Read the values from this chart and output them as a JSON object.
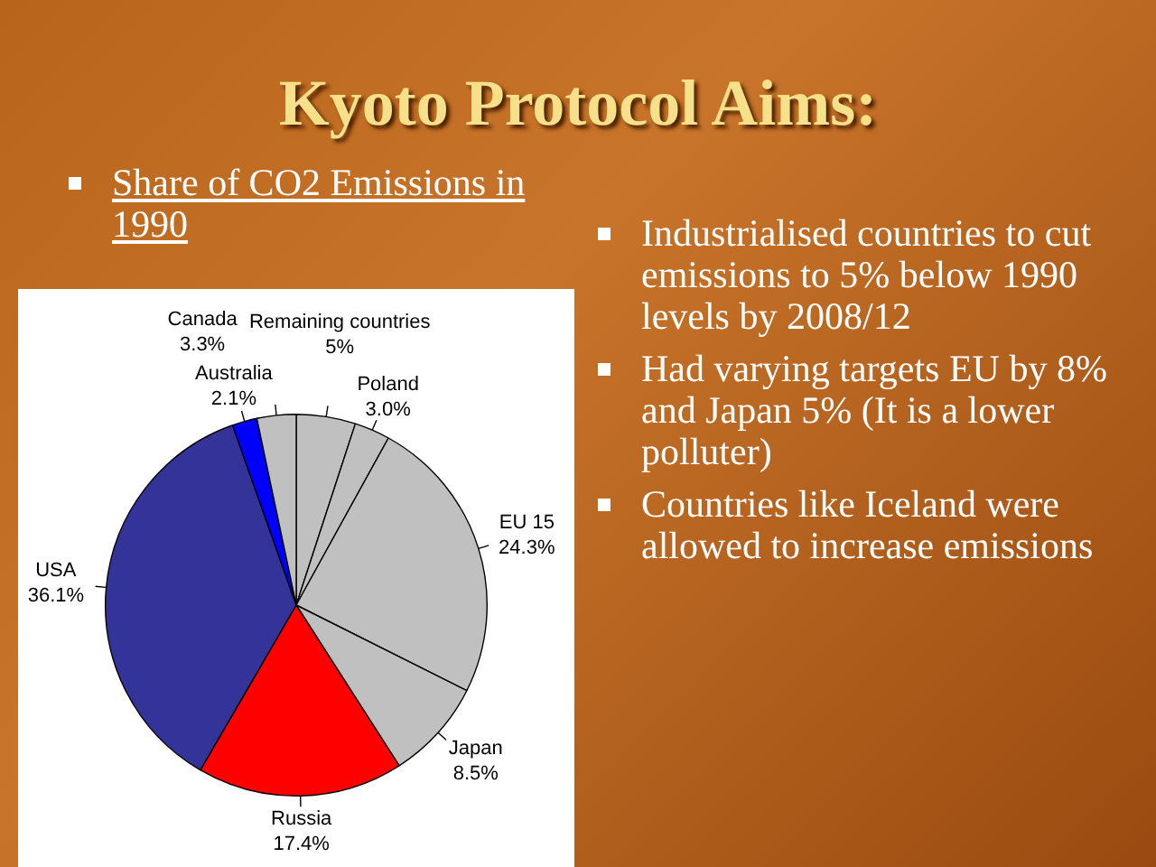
{
  "chart_data": {
    "type": "pie",
    "title": "Kyoto Protocol Aims:",
    "subtitle": "Share of CO2 Emissions in 1990",
    "categories": [
      "Remaining countries",
      "Poland",
      "EU 15",
      "Japan",
      "Russia",
      "USA",
      "Australia",
      "Canada"
    ],
    "values": [
      5,
      3.0,
      24.3,
      8.5,
      17.4,
      36.1,
      2.1,
      3.3
    ],
    "value_labels": [
      "5%",
      "3.0%",
      "24.3%",
      "8.5%",
      "17.4%",
      "36.1%",
      "2.1%",
      "3.3%"
    ],
    "colors": [
      "#c0c0c0",
      "#c0c0c0",
      "#c0c0c0",
      "#c0c0c0",
      "#ff0000",
      "#333399",
      "#0000ff",
      "#c0c0c0"
    ],
    "legend": false,
    "annotations": [
      "Industrialised countries to cut emissions to 5% below 1990 levels by 2008/12",
      "Had varying targets EU by 8% and Japan 5% (It is a lower polluter)",
      "Countries like Iceland were allowed to increase emissions"
    ]
  }
}
